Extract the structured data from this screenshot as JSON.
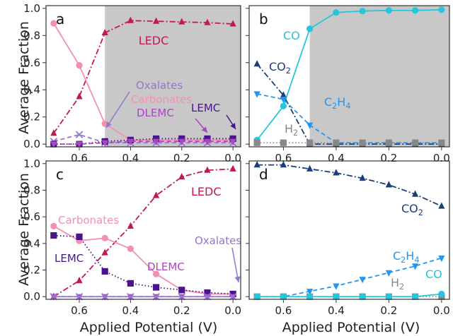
{
  "figure": {
    "ylabel": "Average Fraction",
    "xlabel": "Applied Potential (V)"
  },
  "chart_data": [
    {
      "panel": "a",
      "type": "line",
      "xlim": [
        0.73,
        -0.03
      ],
      "ylim": [
        -0.02,
        1.02
      ],
      "xticks": [
        "0.6",
        "0.4",
        "0.2",
        "0.0"
      ],
      "yticks": [
        "0.0",
        "0.2",
        "0.4",
        "0.6",
        "0.8",
        "1.0"
      ],
      "shaded_region": [
        0.5,
        -0.03
      ],
      "series": [
        {
          "name": "LEDC",
          "color": "#c2185b",
          "dash": "dashdot",
          "marker": "triangle-up",
          "x": [
            0.7,
            0.6,
            0.5,
            0.4,
            0.3,
            0.2,
            0.1,
            0.0
          ],
          "y": [
            0.08,
            0.35,
            0.82,
            0.91,
            0.905,
            0.9,
            0.895,
            0.885
          ]
        },
        {
          "name": "Carbonates",
          "color": "#f48fb1",
          "dash": "solid",
          "marker": "circle",
          "x": [
            0.7,
            0.6,
            0.5,
            0.4,
            0.3,
            0.2,
            0.1,
            0.0
          ],
          "y": [
            0.89,
            0.58,
            0.15,
            0.03,
            0.03,
            0.03,
            0.03,
            0.03
          ]
        },
        {
          "name": "Oxalates",
          "color": "#9575cd",
          "dash": "dashed",
          "marker": "x",
          "x": [
            0.7,
            0.6,
            0.5,
            0.4,
            0.3,
            0.2,
            0.1,
            0.0
          ],
          "y": [
            0.02,
            0.07,
            0.01,
            0.01,
            0.01,
            0.01,
            0.01,
            0.01
          ]
        },
        {
          "name": "LEMC",
          "color": "#4a148c",
          "dash": "dotted",
          "marker": "square",
          "x": [
            0.7,
            0.6,
            0.5,
            0.4,
            0.3,
            0.2,
            0.1,
            0.0
          ],
          "y": [
            0.0,
            0.0,
            0.02,
            0.03,
            0.04,
            0.04,
            0.04,
            0.04
          ]
        },
        {
          "name": "DLEMC",
          "color": "#ab47bc",
          "dash": "dashed",
          "marker": "triangle-down",
          "x": [
            0.7,
            0.6,
            0.5,
            0.4,
            0.3,
            0.2,
            0.1,
            0.0
          ],
          "y": [
            0.0,
            0.0,
            0.01,
            0.02,
            0.02,
            0.02,
            0.02,
            0.02
          ]
        }
      ],
      "labels": [
        "a",
        "LEDC",
        "Oxalates",
        "Carbonates",
        "DLEMC",
        "LEMC"
      ]
    },
    {
      "panel": "b",
      "type": "line",
      "xlim": [
        0.73,
        -0.03
      ],
      "ylim": [
        -0.02,
        1.02
      ],
      "xticks": [
        "0.6",
        "0.4",
        "0.2",
        "0.0"
      ],
      "yticks": [],
      "shaded_region": [
        0.5,
        -0.03
      ],
      "series": [
        {
          "name": "CO",
          "color": "#26c6da",
          "dash": "solid",
          "marker": "circle",
          "x": [
            0.7,
            0.6,
            0.5,
            0.4,
            0.3,
            0.2,
            0.1,
            0.0
          ],
          "y": [
            0.03,
            0.28,
            0.85,
            0.97,
            0.98,
            0.985,
            0.985,
            0.99
          ]
        },
        {
          "name": "CO2",
          "color": "#1a3e7a",
          "dash": "dashdot",
          "marker": "triangle-up",
          "x": [
            0.7,
            0.6,
            0.5,
            0.4,
            0.3,
            0.2,
            0.1,
            0.0
          ],
          "y": [
            0.59,
            0.36,
            0.0,
            0.0,
            0.0,
            0.0,
            0.0,
            0.0
          ]
        },
        {
          "name": "C2H4",
          "color": "#2196f3",
          "dash": "dashed",
          "marker": "triangle-down",
          "x": [
            0.7,
            0.6,
            0.5,
            0.4,
            0.3,
            0.2,
            0.1,
            0.0
          ],
          "y": [
            0.37,
            0.33,
            0.14,
            0.01,
            0.01,
            0.01,
            0.01,
            0.01
          ]
        },
        {
          "name": "H2",
          "color": "#888888",
          "dash": "dotted",
          "marker": "square",
          "x": [
            0.7,
            0.6,
            0.5,
            0.4,
            0.3,
            0.2,
            0.1,
            0.0
          ],
          "y": [
            0.01,
            0.01,
            0.01,
            0.01,
            0.01,
            0.01,
            0.01,
            0.01
          ]
        }
      ],
      "labels": [
        "b",
        "CO",
        "CO2",
        "C2H4",
        "H2"
      ]
    },
    {
      "panel": "c",
      "type": "line",
      "xlim": [
        0.73,
        -0.03
      ],
      "ylim": [
        -0.02,
        1.02
      ],
      "xticks": [
        "0.6",
        "0.4",
        "0.2",
        "0.0"
      ],
      "yticks": [
        "0.0",
        "0.2",
        "0.4",
        "0.6",
        "0.8",
        "1.0"
      ],
      "series": [
        {
          "name": "LEDC",
          "color": "#c2185b",
          "dash": "dashdot",
          "marker": "triangle-up",
          "x": [
            0.7,
            0.6,
            0.5,
            0.4,
            0.3,
            0.2,
            0.1,
            0.0
          ],
          "y": [
            0.0,
            0.12,
            0.33,
            0.53,
            0.76,
            0.9,
            0.95,
            0.96
          ]
        },
        {
          "name": "Carbonates",
          "color": "#f48fb1",
          "dash": "solid",
          "marker": "circle",
          "x": [
            0.7,
            0.6,
            0.5,
            0.4,
            0.3,
            0.2,
            0.1,
            0.0
          ],
          "y": [
            0.53,
            0.42,
            0.44,
            0.36,
            0.17,
            0.05,
            0.02,
            0.02
          ]
        },
        {
          "name": "LEMC",
          "color": "#4a148c",
          "dash": "dotted",
          "marker": "square",
          "x": [
            0.7,
            0.6,
            0.5,
            0.4,
            0.3,
            0.2,
            0.1,
            0.0
          ],
          "y": [
            0.46,
            0.45,
            0.19,
            0.1,
            0.07,
            0.05,
            0.03,
            0.02
          ]
        },
        {
          "name": "DLEMC",
          "color": "#ab47bc",
          "dash": "dashed",
          "marker": "triangle-down",
          "x": [
            0.7,
            0.6,
            0.5,
            0.4,
            0.3,
            0.2,
            0.1,
            0.0
          ],
          "y": [
            0.0,
            0.0,
            0.0,
            0.0,
            0.0,
            0.0,
            0.0,
            0.0
          ]
        },
        {
          "name": "Oxalates",
          "color": "#9575cd",
          "dash": "solid",
          "marker": "x",
          "x": [
            0.7,
            0.6,
            0.5,
            0.4,
            0.3,
            0.2,
            0.1,
            0.0
          ],
          "y": [
            0.0,
            0.0,
            0.0,
            0.0,
            0.0,
            0.0,
            0.0,
            0.0
          ]
        }
      ],
      "labels": [
        "c",
        "LEDC",
        "Carbonates",
        "LEMC",
        "DLEMC",
        "Oxalates"
      ]
    },
    {
      "panel": "d",
      "type": "line",
      "xlim": [
        0.73,
        -0.03
      ],
      "ylim": [
        -0.02,
        1.02
      ],
      "xticks": [
        "0.6",
        "0.4",
        "0.2",
        "0.0"
      ],
      "yticks": [],
      "series": [
        {
          "name": "CO2",
          "color": "#1a3e7a",
          "dash": "dashdot",
          "marker": "triangle-up",
          "x": [
            0.7,
            0.6,
            0.5,
            0.4,
            0.3,
            0.2,
            0.1,
            0.0
          ],
          "y": [
            0.99,
            0.99,
            0.96,
            0.93,
            0.89,
            0.84,
            0.77,
            0.68
          ]
        },
        {
          "name": "C2H4",
          "color": "#2196f3",
          "dash": "dashed",
          "marker": "triangle-down",
          "x": [
            0.7,
            0.6,
            0.5,
            0.4,
            0.3,
            0.2,
            0.1,
            0.0
          ],
          "y": [
            0.0,
            0.0,
            0.04,
            0.08,
            0.13,
            0.18,
            0.23,
            0.29
          ]
        },
        {
          "name": "H2",
          "color": "#888888",
          "dash": "dotted",
          "marker": "square",
          "x": [
            0.7,
            0.6,
            0.5,
            0.4,
            0.3,
            0.2,
            0.1,
            0.0
          ],
          "y": [
            0.0,
            0.0,
            0.0,
            0.0,
            0.0,
            0.0,
            0.0,
            0.0
          ]
        },
        {
          "name": "CO",
          "color": "#26c6da",
          "dash": "solid",
          "marker": "circle",
          "x": [
            0.7,
            0.6,
            0.5,
            0.4,
            0.3,
            0.2,
            0.1,
            0.0
          ],
          "y": [
            0.0,
            0.0,
            0.0,
            0.0,
            0.0,
            0.0,
            0.0,
            0.02
          ]
        }
      ],
      "labels": [
        "d",
        "CO2",
        "C2H4",
        "H2",
        "CO"
      ]
    }
  ]
}
